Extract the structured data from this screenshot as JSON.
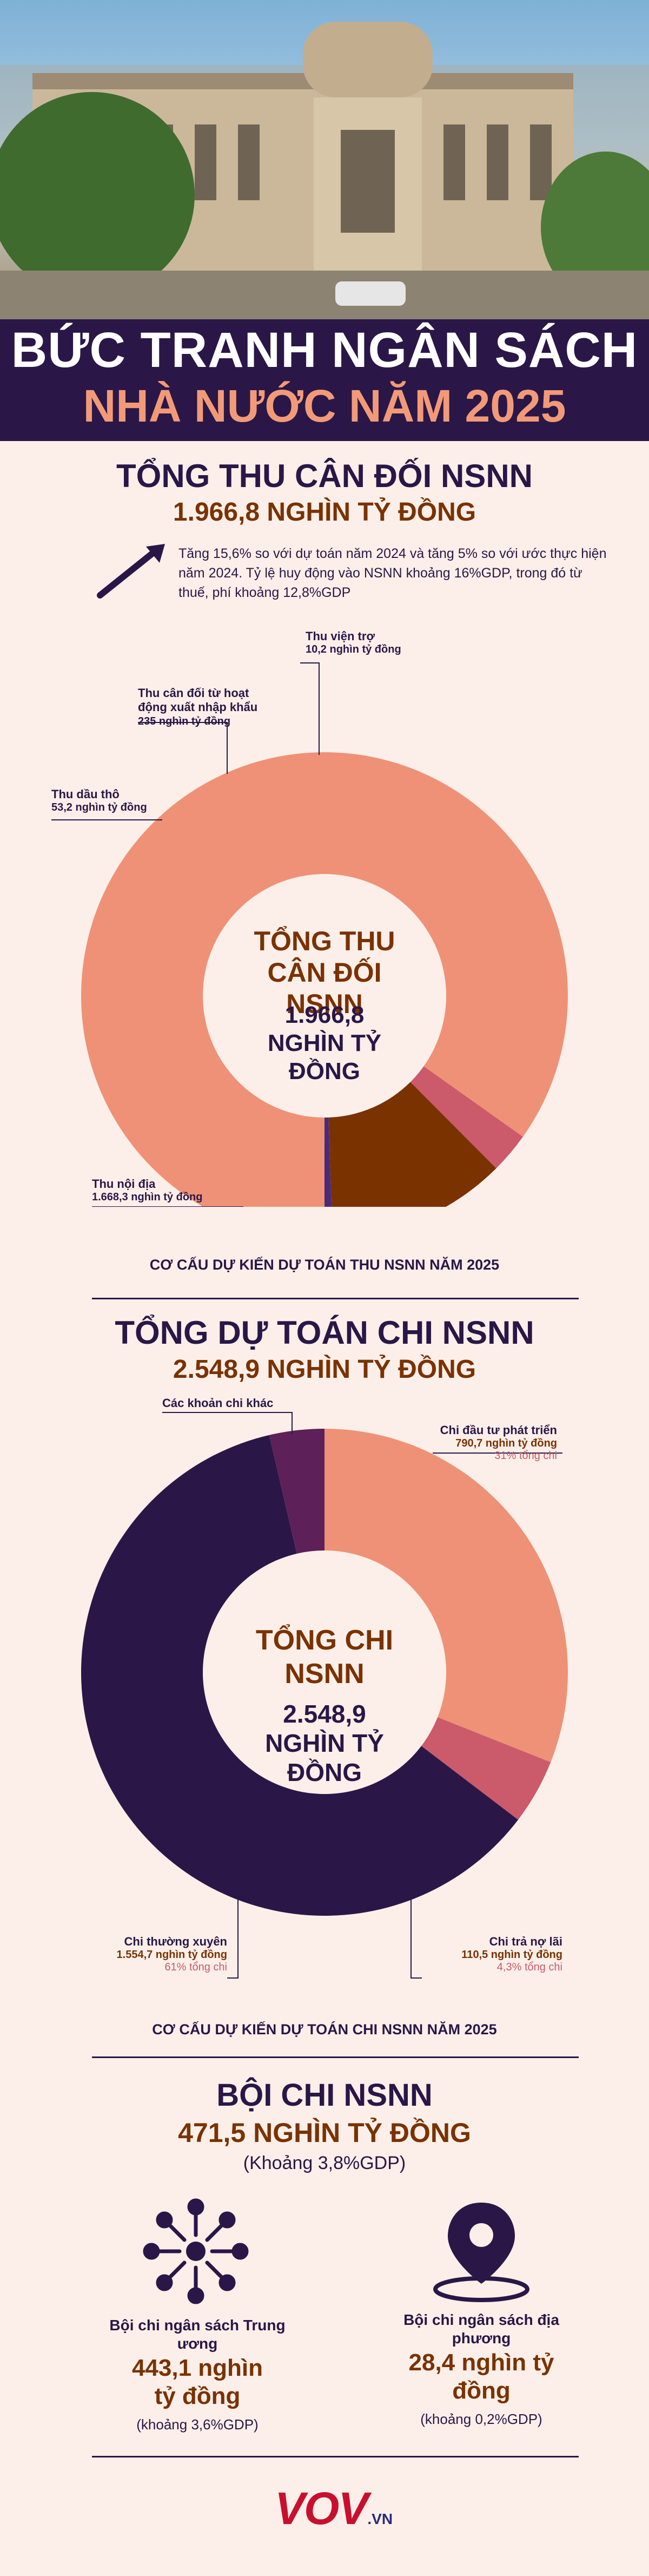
{
  "header": {
    "title_line1": "BỨC TRANH NGÂN SÁCH",
    "title_line2": "NHÀ NƯỚC NĂM 2025"
  },
  "revenue": {
    "heading": "TỔNG THU CÂN ĐỐI NSNN",
    "subheading": "1.966,8 NGHÌN TỶ ĐỒNG",
    "note": "Tăng 15,6% so với dự toán năm 2024 và tăng 5% so với ước thực hiện năm 2024. Tỷ lệ huy động vào NSNN khoảng 16%GDP, trong đó từ thuế, phí khoảng 12,8%GDP",
    "center_title": "TỔNG THU CÂN ĐỐI NSNN",
    "center_value": "1.966,8 NGHÌN TỶ ĐỒNG",
    "caption": "CƠ CẤU DỰ KIẾN DỰ TOÁN THU NSNN NĂM 2025"
  },
  "spending": {
    "heading": "TỔNG DỰ TOÁN CHI NSNN",
    "subheading": "2.548,9 NGHÌN TỶ ĐỒNG",
    "center_title": "TỔNG CHI NSNN",
    "center_value": "2.548,9 NGHÌN TỶ ĐỒNG",
    "caption": "CƠ CẤU DỰ KIẾN DỰ TOÁN CHI NSNN NĂM 2025"
  },
  "deficit": {
    "heading": "BỘI CHI NSNN",
    "value": "471,5 NGHÌN TỶ ĐỒNG",
    "pct": "(Khoảng 3,8%GDP)",
    "central_label": "Bội chi ngân sách Trung ương",
    "central_value": "443,1 nghìn tỷ đồng",
    "central_pct": "(khoảng 3,6%GDP)",
    "local_label": "Bội chi ngân sách địa phương",
    "local_value": "28,4 nghìn tỷ đồng",
    "local_pct": "(khoảng 0,2%GDP)"
  },
  "footer": {
    "logo": "VOV",
    "logo_suffix": ".VN"
  },
  "colors": {
    "purple": "#2a1747",
    "salmon": "#ef9176",
    "rose": "#cb5a6b",
    "brown": "#7a3200",
    "cream": "#fcefe9"
  },
  "chart_data": [
    {
      "type": "pie",
      "title": "CƠ CẤU DỰ KIẾN DỰ TOÁN THU NSNN NĂM 2025",
      "unit": "nghìn tỷ đồng",
      "slices": [
        {
          "label": "Thu nội địa",
          "value": 1668.3,
          "value_text": "1.668,3 nghìn tỷ đồng",
          "color": "#ef9176"
        },
        {
          "label": "Thu dầu thô",
          "value": 53.2,
          "value_text": "53,2 nghìn tỷ đồng",
          "color": "#cb5a6b"
        },
        {
          "label": "Thu cân đối từ hoạt động xuất nhập khẩu",
          "value": 235,
          "value_text": "235 nghìn tỷ đồng",
          "color": "#7a3200"
        },
        {
          "label": "Thu viện trợ",
          "value": 10.2,
          "value_text": "10,2 nghìn tỷ đồng",
          "color": "#4a2a7a"
        }
      ]
    },
    {
      "type": "pie",
      "title": "CƠ CẤU DỰ KIẾN DỰ TOÁN CHI NSNN NĂM 2025",
      "unit": "nghìn tỷ đồng",
      "slices": [
        {
          "label": "Chi đầu tư phát triển",
          "value": 790.7,
          "value_text": "790,7 nghìn tỷ đồng",
          "pct_text": "31% tổng chi",
          "color": "#ef9176"
        },
        {
          "label": "Chi trả nợ lãi",
          "value": 110.5,
          "value_text": "110,5 nghìn tỷ đồng",
          "pct_text": "4,3% tổng chi",
          "color": "#cb5a6b"
        },
        {
          "label": "Chi thường xuyên",
          "value": 1554.7,
          "value_text": "1.554,7 nghìn tỷ đồng",
          "pct_text": "61% tổng chi",
          "color": "#2a1747"
        },
        {
          "label": "Các khoản chi khác",
          "value": 93,
          "value_text": "",
          "pct_text": "",
          "color": "#5e2058"
        }
      ]
    }
  ]
}
